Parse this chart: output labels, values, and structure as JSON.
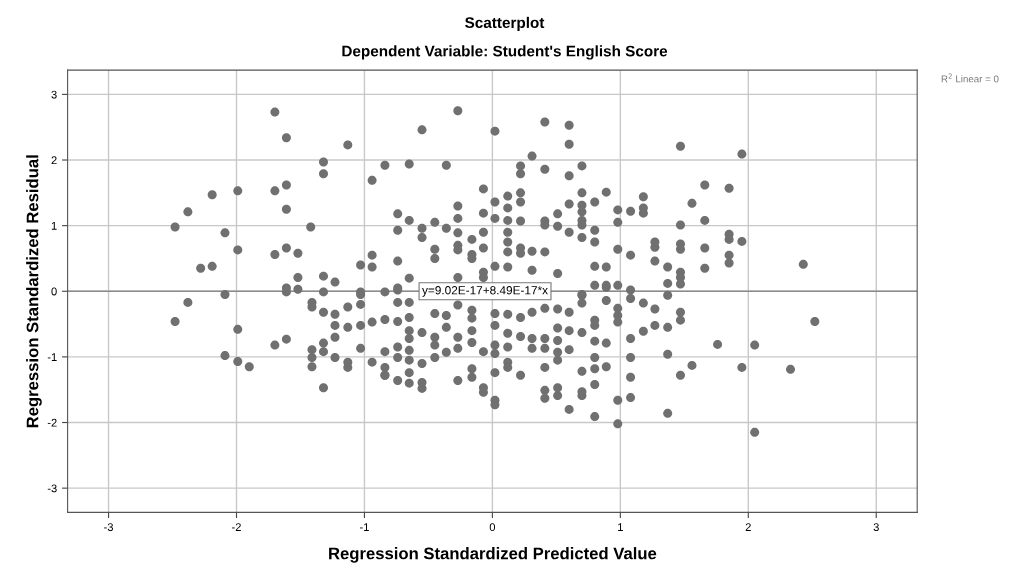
{
  "chart_data": {
    "type": "scatter",
    "title": "Scatterplot",
    "subtitle": "Dependent Variable: Student's English Score",
    "xlabel": "Regression Standardized Predicted Value",
    "ylabel": "Regression Standardized Residual",
    "xlim": [
      -3.32,
      3.32
    ],
    "ylim": [
      -3.37,
      3.37
    ],
    "xticks": [
      -3,
      -2,
      -1,
      0,
      1,
      2,
      3
    ],
    "yticks": [
      -3,
      -2,
      -1,
      0,
      1,
      2,
      3
    ],
    "grid": true,
    "annotations": [
      "R$^{2}$ Linear = 0",
      {
        "text": "y=9.02E-17+8.49E-17*x",
        "x": -0.55,
        "y": 0
      }
    ],
    "series": [
      {
        "color": "#707070",
        "marker": "circle",
        "x": [
          -2.48,
          -2.38,
          -2.48,
          -2.38,
          -2.28,
          -2.19,
          -2.19,
          -1.99,
          -2.09,
          -1.99,
          -2.09,
          -1.7,
          -1.61,
          -1.13,
          -1.32,
          -1.32,
          -0.84,
          -0.94,
          -1.7,
          -1.61,
          -1.61,
          -1.42,
          -1.7,
          -1.61,
          -1.52,
          -1.52,
          -1.32,
          -1.23,
          -1.03,
          -0.94,
          -0.94,
          -1.61,
          -1.61,
          -1.52,
          -1.32,
          -1.03,
          -0.84,
          -1.99,
          -2.09,
          -1.99,
          -1.9,
          -1.7,
          -1.61,
          -1.41,
          -1.41,
          -1.32,
          -1.23,
          -1.23,
          -1.13,
          -1.13,
          -1.03,
          -1.03,
          -1.03,
          -0.94,
          -0.84,
          -1.23,
          -1.41,
          -1.41,
          -1.41,
          -1.32,
          -1.32,
          -1.32,
          -1.23,
          -1.13,
          -1.13,
          -1.03,
          -0.94,
          -0.84,
          -0.84,
          -0.84,
          -0.27,
          -0.55,
          0.02,
          0.41,
          0.6,
          0.6,
          0.31,
          -0.65,
          -0.36,
          0.22,
          0.22,
          0.41,
          0.6,
          0.7,
          -0.07,
          -0.27,
          -0.27,
          -0.07,
          0.02,
          0.02,
          0.12,
          0.12,
          0.12,
          0.22,
          0.22,
          0.22,
          0.41,
          0.41,
          0.51,
          0.51,
          0.6,
          0.7,
          0.7,
          0.7,
          0.7,
          0.7,
          0.8,
          0.89,
          -0.74,
          -0.74,
          -0.65,
          -0.55,
          -0.55,
          -0.45,
          -0.36,
          -0.27,
          -0.16,
          -0.07,
          -0.07,
          -0.27,
          -0.27,
          -0.45,
          -0.45,
          -0.16,
          -0.16,
          -0.74,
          -0.65,
          -0.27,
          -0.07,
          -0.07,
          0.02,
          0.12,
          0.12,
          0.12,
          0.22,
          0.22,
          0.31,
          0.41,
          0.12,
          0.31,
          0.51,
          0.6,
          0.7,
          0.8,
          0.8,
          0.8,
          0.89,
          0.89,
          1.47,
          1.95,
          1.66,
          1.85,
          1.56,
          1.18,
          1.18,
          1.18,
          0.98,
          1.08,
          0.98,
          1.47,
          1.66,
          1.85,
          1.85,
          1.95,
          1.27,
          1.27,
          1.47,
          1.47,
          1.66,
          0.98,
          1.08,
          1.27,
          1.37,
          1.47,
          1.47,
          1.66,
          1.85,
          1.85,
          2.43,
          1.37,
          1.47,
          0.98,
          1.08,
          1.08,
          1.37,
          0.98,
          0.98,
          0.98,
          1.18,
          1.27,
          1.47,
          1.47,
          1.18,
          1.27,
          1.37,
          1.08,
          1.76,
          2.05,
          2.52,
          1.08,
          1.37,
          1.56,
          1.47,
          1.95,
          2.33,
          1.08,
          0.98,
          1.08,
          1.37,
          0.98,
          2.05,
          -0.74,
          -0.74,
          -0.65,
          -0.65,
          -0.74,
          -0.65,
          -0.55,
          -0.45,
          -0.36,
          -0.36,
          -0.45,
          -0.45,
          -0.45,
          -0.36,
          -0.27,
          -0.16,
          -0.16,
          -0.27,
          -0.27,
          -0.16,
          -0.16,
          -0.07,
          0.02,
          0.02,
          0.02,
          0.02,
          0.12,
          0.22,
          0.31,
          0.41,
          0.51,
          0.6,
          0.12,
          0.12,
          0.22,
          0.31,
          0.31,
          0.41,
          0.41,
          0.51,
          0.51,
          0.51,
          0.51,
          0.6,
          0.6,
          0.7,
          0.8,
          0.8,
          0.8,
          0.89,
          -0.65,
          -0.65,
          -0.65,
          -0.65,
          -0.65,
          -0.74,
          -0.74,
          -0.84,
          -0.74,
          -0.55,
          -0.55,
          -0.55,
          -0.27,
          -0.16,
          -0.16,
          -0.07,
          -0.07,
          0.02,
          0.02,
          0.02,
          0.12,
          0.12,
          0.22,
          0.41,
          0.41,
          0.41,
          0.51,
          0.51,
          0.6,
          0.7,
          0.7,
          0.7,
          0.8,
          0.8,
          0.8,
          0.8,
          0.89,
          0.8,
          0.89,
          0.89,
          0.7,
          0.7,
          -0.74,
          0.7
        ],
        "values": [
          0.98,
          1.21,
          -0.46,
          -0.17,
          0.35,
          0.38,
          1.47,
          1.53,
          0.89,
          0.63,
          -0.05,
          2.73,
          2.34,
          2.23,
          1.97,
          1.79,
          1.92,
          1.69,
          1.53,
          1.62,
          1.25,
          0.98,
          0.56,
          0.66,
          0.58,
          0.21,
          0.23,
          0.14,
          0.4,
          0.55,
          0.37,
          0.05,
          -0.01,
          0.03,
          -0.01,
          -0.01,
          -0.01,
          -0.58,
          -0.98,
          -1.07,
          -1.15,
          -0.82,
          -0.73,
          -0.17,
          -0.24,
          -0.32,
          -0.35,
          -0.52,
          -0.24,
          -0.55,
          -0.05,
          -0.2,
          -0.52,
          -0.47,
          -0.43,
          -0.7,
          -0.89,
          -1.01,
          -1.15,
          -0.79,
          -0.92,
          -1.47,
          -1.01,
          -1.08,
          -1.16,
          -0.87,
          -1.08,
          -0.92,
          -1.16,
          -1.28,
          2.75,
          2.46,
          2.44,
          2.58,
          2.53,
          2.24,
          2.06,
          1.94,
          1.92,
          1.91,
          1.79,
          1.86,
          1.76,
          1.91,
          1.56,
          1.3,
          1.11,
          1.19,
          1.36,
          1.11,
          1.45,
          1.27,
          1.08,
          1.5,
          1.36,
          1.07,
          1.07,
          1.01,
          1.18,
          0.99,
          1.33,
          1.5,
          1.31,
          1.21,
          1.08,
          1.01,
          1.36,
          1.51,
          1.18,
          0.93,
          1.08,
          0.96,
          0.82,
          1.05,
          0.96,
          0.89,
          0.79,
          0.9,
          0.66,
          0.7,
          0.63,
          0.64,
          0.5,
          0.56,
          0.5,
          0.46,
          0.2,
          0.21,
          0.29,
          0.21,
          0.38,
          0.9,
          0.75,
          0.6,
          0.66,
          0.58,
          0.61,
          0.6,
          0.37,
          0.32,
          0.27,
          0.9,
          0.82,
          0.93,
          0.75,
          0.38,
          0.37,
          0.06,
          2.21,
          2.09,
          1.62,
          1.57,
          1.34,
          1.44,
          1.27,
          1.19,
          1.24,
          1.22,
          1.05,
          1.01,
          1.08,
          0.87,
          0.79,
          0.76,
          0.75,
          0.67,
          0.72,
          0.64,
          0.66,
          0.64,
          0.55,
          0.46,
          0.37,
          0.29,
          0.21,
          0.35,
          0.55,
          0.43,
          0.41,
          0.12,
          0.11,
          0.09,
          0.02,
          -0.11,
          -0.06,
          -0.26,
          -0.37,
          -0.47,
          -0.18,
          -0.27,
          -0.32,
          -0.44,
          -0.61,
          -0.52,
          -0.55,
          -0.72,
          -0.81,
          -0.82,
          -0.46,
          -1.01,
          -0.96,
          -1.13,
          -1.28,
          -1.16,
          -1.19,
          -1.31,
          -1.66,
          -1.62,
          -1.86,
          -2.02,
          -2.15,
          0.05,
          -0.17,
          -0.17,
          -0.4,
          -0.46,
          -0.6,
          -0.63,
          -0.34,
          -0.37,
          -0.55,
          -0.7,
          -0.82,
          -1.01,
          -0.93,
          -0.21,
          -0.29,
          -0.41,
          -0.7,
          -0.87,
          -0.6,
          -0.78,
          -0.92,
          -0.34,
          -0.52,
          -0.82,
          -0.95,
          -0.35,
          -0.4,
          -0.32,
          -0.26,
          -0.27,
          -0.32,
          -0.64,
          -0.85,
          -0.69,
          -0.72,
          -0.87,
          -0.72,
          -0.87,
          -0.56,
          -0.75,
          -0.93,
          -1.05,
          -0.6,
          -0.89,
          -0.63,
          -0.44,
          -0.52,
          -0.76,
          -0.79,
          -0.72,
          -0.9,
          -1.05,
          -1.24,
          -1.4,
          -0.85,
          -1.01,
          -1.28,
          -1.36,
          -1.1,
          -1.39,
          -1.48,
          -1.36,
          -1.18,
          -1.31,
          -1.47,
          -1.54,
          -1.24,
          -1.66,
          -1.73,
          -1.08,
          -1.16,
          -1.28,
          -1.16,
          -1.51,
          -1.63,
          -1.47,
          -1.59,
          -1.8,
          -1.22,
          -1.53,
          -1.59,
          -1.01,
          -1.18,
          -1.42,
          -1.91,
          -1.15,
          0.09,
          0.09,
          -0.14,
          -0.06,
          -0.18,
          0.02,
          -0.05
        ]
      },
      {
        "type": "line",
        "color": "#8c8c8c",
        "x": [
          -3.32,
          3.32
        ],
        "values": [
          0,
          0
        ]
      }
    ]
  }
}
